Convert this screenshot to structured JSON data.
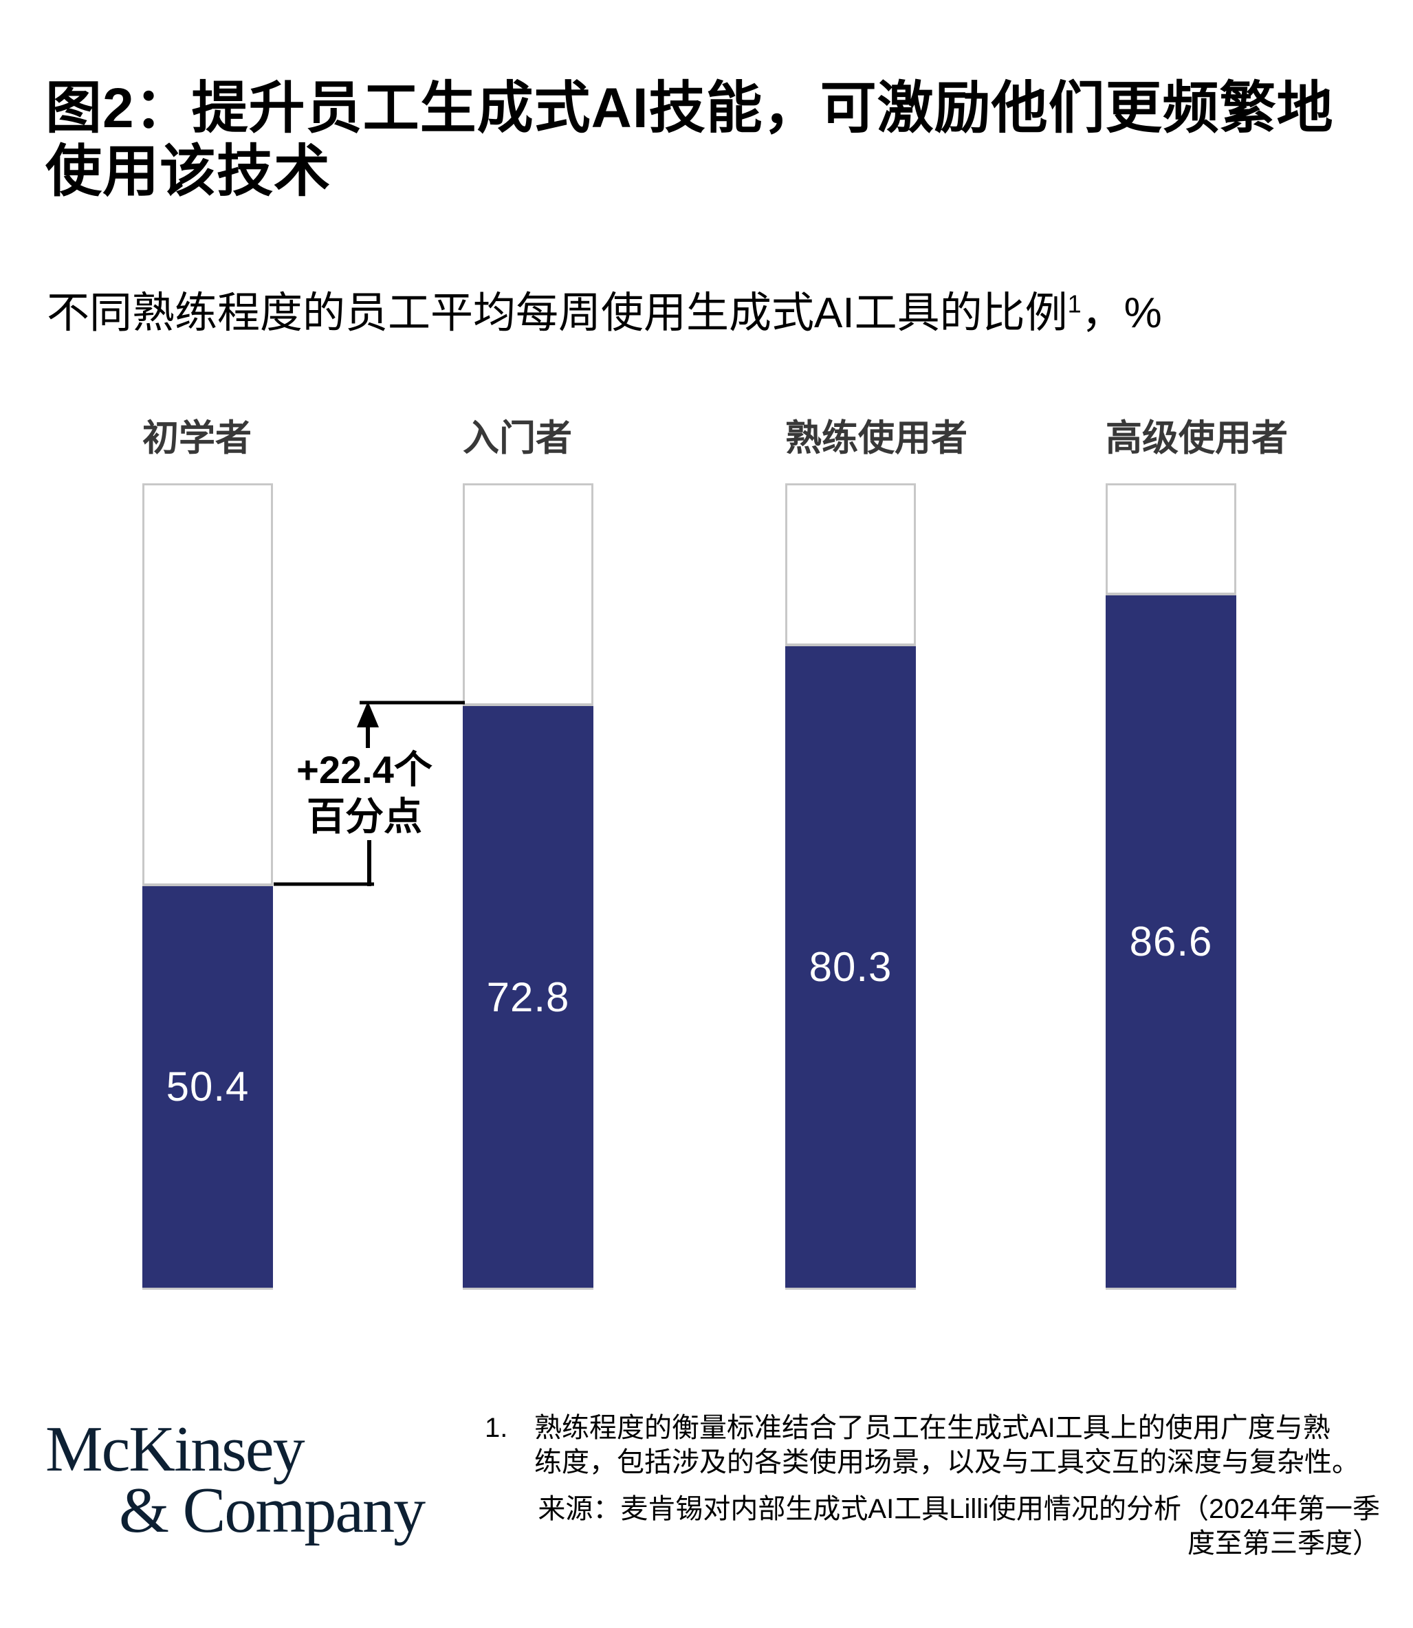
{
  "title": {
    "lines": [
      "图2：提升员工生成式AI技能，可激励他们更频繁地",
      "使用该技术"
    ]
  },
  "subtitle": {
    "text": "不同熟练程度的员工平均每周使用生成式AI工具的比例",
    "superscript": "1",
    "suffix": "，%"
  },
  "chart_data": {
    "type": "bar",
    "categories": [
      "初学者",
      "入门者",
      "熟练使用者",
      "高级使用者"
    ],
    "values": [
      50.4,
      72.8,
      80.3,
      86.6
    ],
    "unit": "%",
    "ylim": [
      0,
      100
    ],
    "grid": false,
    "legend": false,
    "bar_style": "filled portion inside 100% outlined track",
    "bar_color": "#2c3274",
    "track_outline_color": "#c8c8c8",
    "value_label_color": "#ffffff",
    "annotation": {
      "lines": [
        "+22.4个",
        "百分点"
      ],
      "between": [
        "初学者",
        "入门者"
      ]
    }
  },
  "footer": {
    "logo": {
      "line1": "McKinsey",
      "line2": "& Company"
    },
    "footnote": {
      "marker": "1.",
      "lines": [
        "熟练程度的衡量标准结合了员工在生成式AI工具上的使用广度与熟",
        "练度，包括涉及的各类使用场景，以及与工具交互的深度与复杂性。"
      ]
    },
    "source": {
      "lines": [
        "来源：麦肯锡对内部生成式AI工具Lilli使用情况的分析（2024年第一季",
        "度至第三季度）"
      ]
    }
  }
}
